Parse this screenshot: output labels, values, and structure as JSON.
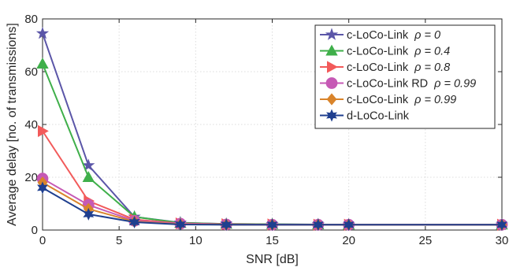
{
  "chart_data": {
    "type": "line",
    "xlabel": "SNR [dB]",
    "ylabel": "Average delay [no. of transmissions]",
    "xlim": [
      0,
      30
    ],
    "ylim": [
      0,
      80
    ],
    "xticks": [
      0,
      5,
      10,
      15,
      20,
      25,
      30
    ],
    "yticks": [
      0,
      20,
      40,
      60,
      80
    ],
    "grid": true,
    "legend_position": "top-right",
    "x": [
      0,
      3,
      6,
      9,
      12,
      15,
      18,
      20,
      30
    ],
    "series": [
      {
        "name": "c-LoCo-Link",
        "rho": "ρ = 0",
        "color": "#5B56A8",
        "marker": "star5",
        "values": [
          74.5,
          24.5,
          5.0,
          2.8,
          2.3,
          2.2,
          2.1,
          2.0,
          2.0
        ]
      },
      {
        "name": "c-LoCo-Link",
        "rho": "ρ = 0.4",
        "color": "#3FAF4A",
        "marker": "triangle-up",
        "values": [
          63.0,
          20.0,
          5.0,
          2.7,
          2.3,
          2.2,
          2.1,
          2.0,
          2.0
        ]
      },
      {
        "name": "c-LoCo-Link",
        "rho": "ρ = 0.8",
        "color": "#F25A5A",
        "marker": "triangle-right",
        "values": [
          37.5,
          11.0,
          4.0,
          2.5,
          2.2,
          2.1,
          2.0,
          2.0,
          2.0
        ]
      },
      {
        "name": "c-LoCo-Link RD",
        "rho": "ρ = 0.99",
        "color": "#C659B5",
        "marker": "circle",
        "values": [
          19.5,
          9.5,
          3.5,
          2.4,
          2.1,
          2.0,
          2.0,
          2.0,
          2.0
        ]
      },
      {
        "name": "c-LoCo-Link",
        "rho": "ρ = 0.99",
        "color": "#D9842B",
        "marker": "diamond",
        "values": [
          18.0,
          8.0,
          3.2,
          2.2,
          2.0,
          2.0,
          2.0,
          2.0,
          2.0
        ]
      },
      {
        "name": "d-LoCo-Link",
        "rho": "",
        "color": "#1F3F8F",
        "marker": "star6",
        "values": [
          16.0,
          6.0,
          3.0,
          2.1,
          2.0,
          2.0,
          2.0,
          2.0,
          2.0
        ]
      }
    ]
  }
}
